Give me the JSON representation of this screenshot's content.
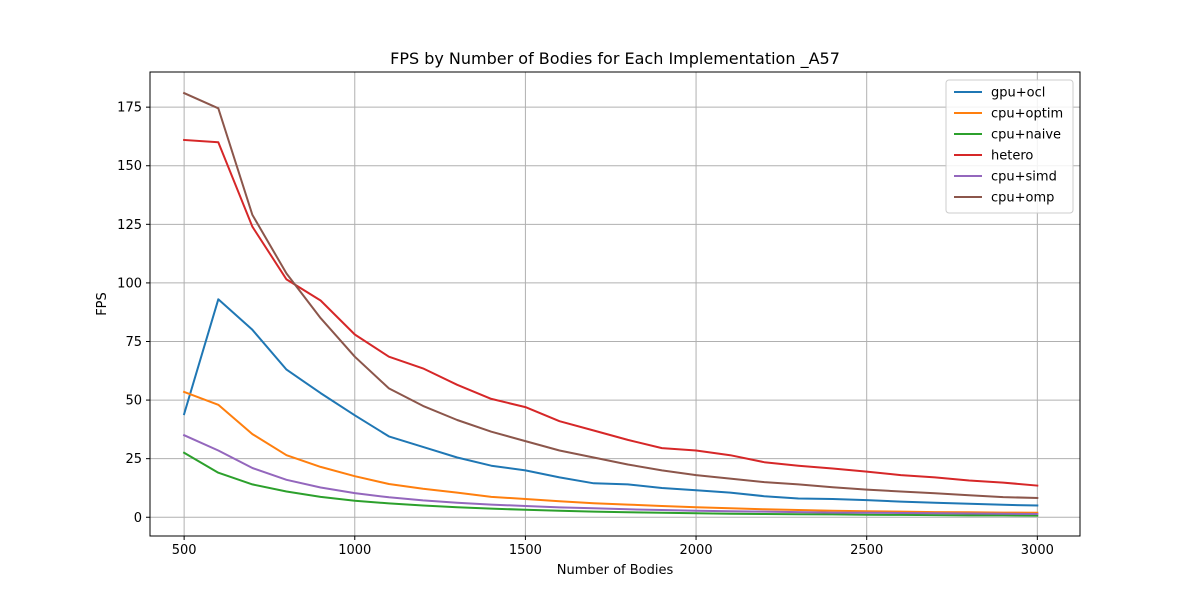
{
  "chart_data": {
    "type": "line",
    "title": "FPS by Number of Bodies for Each Implementation _A57",
    "xlabel": "Number of Bodies",
    "ylabel": "FPS",
    "xlim": [
      400,
      3125
    ],
    "ylim": [
      -8,
      190
    ],
    "xticks": [
      500,
      1000,
      1500,
      2000,
      2500,
      3000
    ],
    "yticks": [
      0,
      25,
      50,
      75,
      100,
      125,
      150,
      175
    ],
    "grid": true,
    "legend_position": "top-right",
    "x": [
      500,
      600,
      700,
      800,
      900,
      1000,
      1100,
      1200,
      1300,
      1400,
      1500,
      1600,
      1700,
      1800,
      1900,
      2000,
      2100,
      2200,
      2300,
      2400,
      2500,
      2600,
      2700,
      2800,
      2900,
      3000
    ],
    "series": [
      {
        "name": "gpu+ocl",
        "color": "#1f77b4",
        "values": [
          44,
          93,
          80,
          63,
          53,
          43.5,
          34.5,
          30,
          25.5,
          22,
          20,
          17,
          14.5,
          14,
          12.5,
          11.5,
          10.5,
          9,
          8,
          7.8,
          7.3,
          6.7,
          6.2,
          5.8,
          5.3,
          5
        ]
      },
      {
        "name": "cpu+optim",
        "color": "#ff7f0e",
        "values": [
          53.5,
          48,
          35.5,
          26.5,
          21.5,
          17.5,
          14.2,
          12.2,
          10.5,
          8.7,
          7.8,
          6.8,
          6,
          5.4,
          4.8,
          4.3,
          3.8,
          3.4,
          3.1,
          2.8,
          2.6,
          2.4,
          2.2,
          2.1,
          2,
          1.9
        ]
      },
      {
        "name": "cpu+naive",
        "color": "#2ca02c",
        "values": [
          27.5,
          19,
          14,
          11,
          8.7,
          7,
          5.9,
          5,
          4.3,
          3.7,
          3.2,
          2.8,
          2.4,
          2.1,
          1.9,
          1.7,
          1.5,
          1.4,
          1.3,
          1.2,
          1.1,
          1,
          0.9,
          0.8,
          0.8,
          0.7
        ]
      },
      {
        "name": "hetero",
        "color": "#d62728",
        "values": [
          161,
          160,
          124,
          101.5,
          92.5,
          78,
          68.5,
          63.5,
          56.5,
          50.5,
          47,
          41,
          37,
          33,
          29.5,
          28.5,
          26.5,
          23.5,
          22,
          20.8,
          19.5,
          18,
          17,
          15.7,
          14.8,
          13.5
        ]
      },
      {
        "name": "cpu+simd",
        "color": "#9467bd",
        "values": [
          35,
          28.5,
          21,
          16,
          12.7,
          10.3,
          8.5,
          7.2,
          6.2,
          5.4,
          4.8,
          4.2,
          3.8,
          3.4,
          3.1,
          2.8,
          2.6,
          2.4,
          2.2,
          2,
          1.9,
          1.8,
          1.7,
          1.6,
          1.5,
          1.4
        ]
      },
      {
        "name": "cpu+omp",
        "color": "#8c564b",
        "values": [
          181,
          174.5,
          129,
          104,
          85,
          68.5,
          55,
          47.5,
          41.5,
          36.5,
          32.5,
          28.5,
          25.5,
          22.5,
          20,
          18,
          16.5,
          15,
          14,
          12.8,
          11.8,
          11,
          10.2,
          9.4,
          8.6,
          8.2
        ]
      }
    ]
  }
}
